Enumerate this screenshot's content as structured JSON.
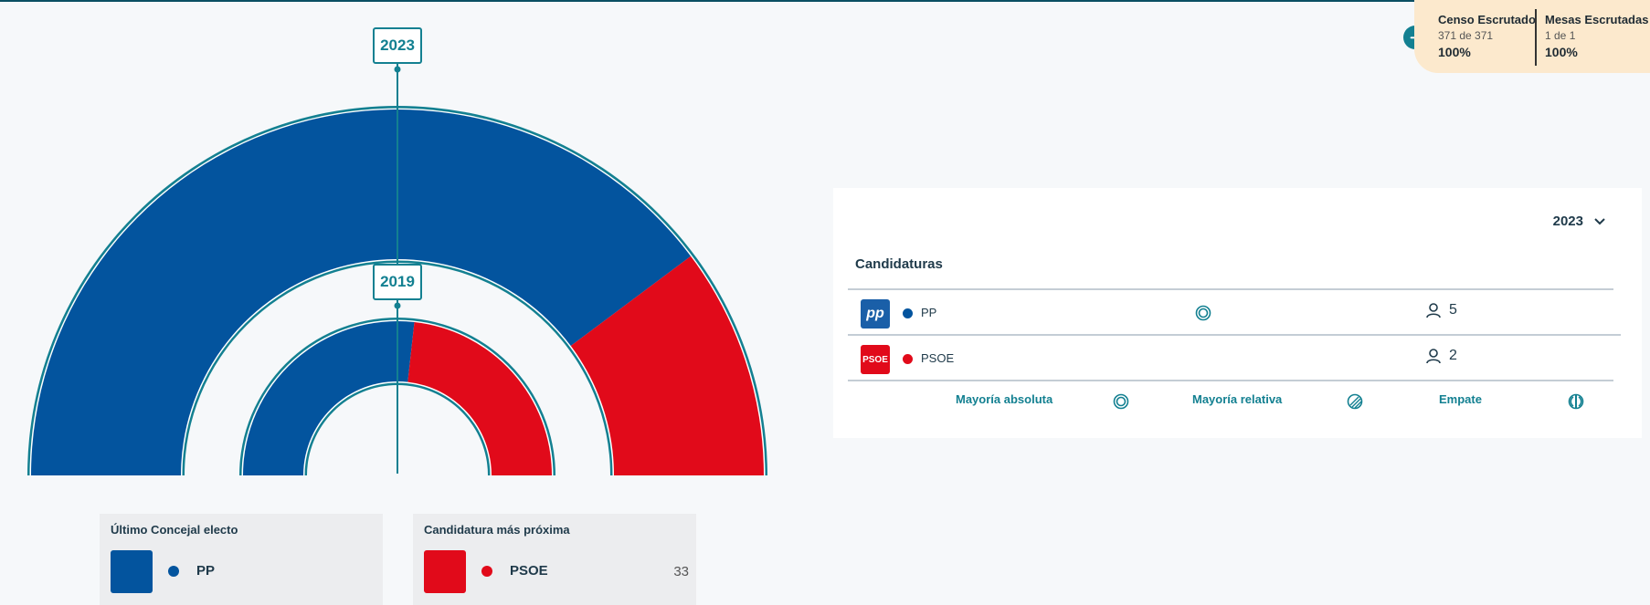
{
  "hemicycle": {
    "outer_year": "2023",
    "inner_year": "2019",
    "outer_shares": [
      {
        "party": "PP",
        "share": 0.7955,
        "color": "#03549e"
      },
      {
        "party": "PSOE",
        "share": 0.2045,
        "color": "#e10a1a"
      }
    ],
    "inner_shares": [
      {
        "party": "PP",
        "share": 0.535,
        "color": "#03549e"
      },
      {
        "party": "PSOE",
        "share": 0.465,
        "color": "#e10a1a"
      }
    ]
  },
  "cards": {
    "last_elected": {
      "title": "Último Concejal electo",
      "party": "PP",
      "color": "#03549e"
    },
    "next_candidate": {
      "title": "Candidatura más próxima",
      "party": "PSOE",
      "color": "#e10a1a",
      "value": "33"
    }
  },
  "status": {
    "census": {
      "label": "Censo Escrutado",
      "detail": "371 de 371",
      "percent": "100%"
    },
    "tables": {
      "label": "Mesas Escrutadas",
      "detail": "1 de 1",
      "percent": "100%"
    }
  },
  "panel": {
    "year_selected": "2023",
    "heading": "Candidaturas",
    "rows": [
      {
        "party": "PP",
        "seats": "5",
        "color": "#03549e",
        "logo_text": "pp",
        "logo_color": "#1a5fa8",
        "majority": "absolute"
      },
      {
        "party": "PSOE",
        "seats": "2",
        "color": "#e10a1a",
        "logo_text": "PSOE",
        "logo_color": "#e10a1a",
        "majority": ""
      }
    ],
    "legend": {
      "absolute": "Mayoría absoluta",
      "relative": "Mayoría relativa",
      "tie": "Empate"
    }
  },
  "colors": {
    "accent": "#138091",
    "pp": "#03549e",
    "psoe": "#e10a1a"
  },
  "icons": [
    "arrow-right-icon",
    "chevron-down-icon",
    "absolute-majority-icon",
    "relative-majority-icon",
    "tie-icon",
    "person-icon"
  ]
}
